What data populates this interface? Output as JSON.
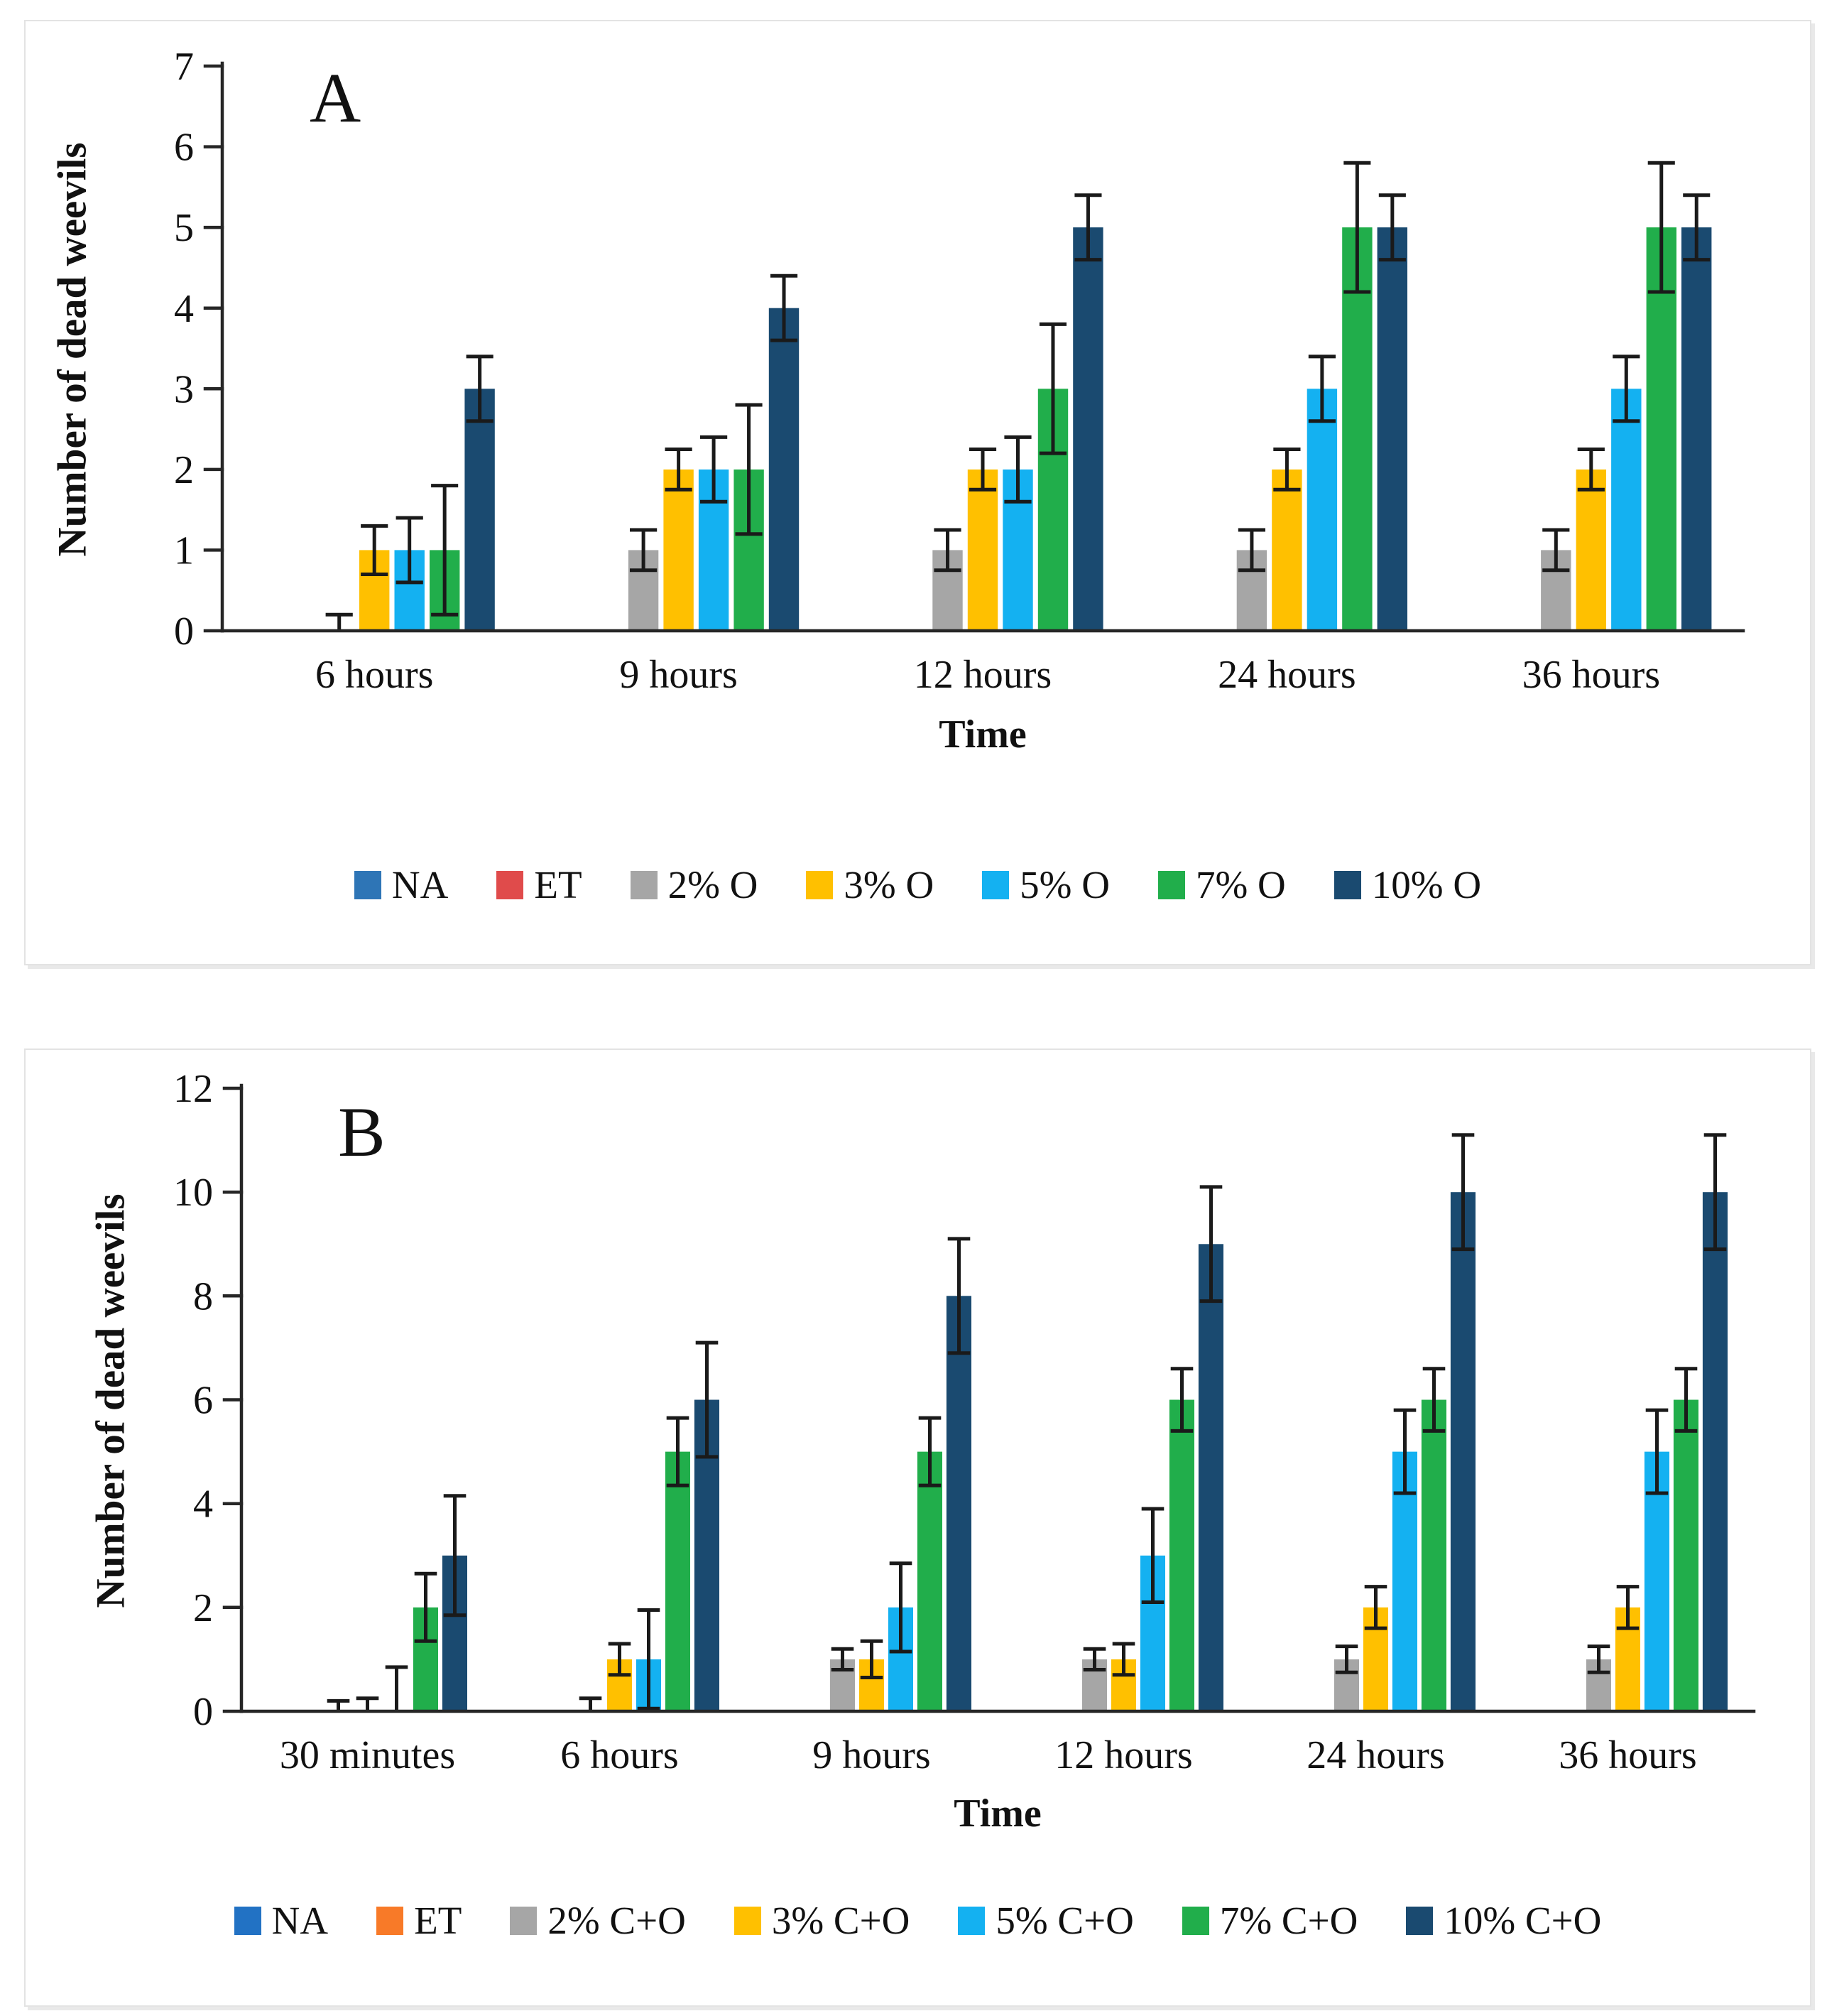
{
  "chart_data": [
    {
      "type": "bar",
      "panel_label": "A",
      "title": "",
      "xlabel": "Time",
      "ylabel": "Number of dead weevils",
      "categories": [
        "6 hours",
        "9 hours",
        "12 hours",
        "24 hours",
        "36 hours"
      ],
      "ylim": [
        0,
        7
      ],
      "yticks": [
        0,
        1,
        2,
        3,
        4,
        5,
        6,
        7
      ],
      "grid": false,
      "legend_position": "bottom",
      "error_bars": true,
      "series": [
        {
          "name": "NA",
          "color": "#2E75B6",
          "values": [
            0,
            0,
            0,
            0,
            0
          ],
          "errors": [
            0,
            0,
            0,
            0,
            0
          ]
        },
        {
          "name": "ET",
          "color": "#E04B4B",
          "values": [
            0,
            0,
            0,
            0,
            0
          ],
          "errors": [
            0,
            0,
            0,
            0,
            0
          ]
        },
        {
          "name": "2% O",
          "color": "#A6A6A6",
          "values": [
            0,
            1,
            1,
            1,
            1
          ],
          "errors": [
            0.2,
            0.25,
            0.25,
            0.25,
            0.25
          ]
        },
        {
          "name": "3% O",
          "color": "#FFC000",
          "values": [
            1,
            2,
            2,
            2,
            2
          ],
          "errors": [
            0.3,
            0.25,
            0.25,
            0.25,
            0.25
          ]
        },
        {
          "name": "5% O",
          "color": "#14B1F1",
          "values": [
            1,
            2,
            2,
            3,
            3
          ],
          "errors": [
            0.4,
            0.4,
            0.4,
            0.4,
            0.4
          ]
        },
        {
          "name": "7% O",
          "color": "#21AE4B",
          "values": [
            1,
            2,
            3,
            5,
            5
          ],
          "errors": [
            0.8,
            0.8,
            0.8,
            0.8,
            0.8
          ]
        },
        {
          "name": "10% O",
          "color": "#1A4A70",
          "values": [
            3,
            4,
            5,
            5,
            5
          ],
          "errors": [
            0.4,
            0.4,
            0.4,
            0.4,
            0.4
          ]
        }
      ]
    },
    {
      "type": "bar",
      "panel_label": "B",
      "title": "",
      "xlabel": "Time",
      "ylabel": "Number of dead weevils",
      "categories": [
        "30 minutes",
        "6 hours",
        "9 hours",
        "12 hours",
        "24 hours",
        "36 hours"
      ],
      "ylim": [
        0,
        12
      ],
      "yticks": [
        0,
        2,
        4,
        6,
        8,
        10,
        12
      ],
      "grid": false,
      "legend_position": "bottom",
      "error_bars": true,
      "series": [
        {
          "name": "NA",
          "color": "#2272C4",
          "values": [
            0,
            0,
            0,
            0,
            0,
            0
          ],
          "errors": [
            0,
            0,
            0,
            0,
            0,
            0
          ]
        },
        {
          "name": "ET",
          "color": "#F87A28",
          "values": [
            0,
            0,
            0,
            0,
            0,
            0
          ],
          "errors": [
            0,
            0,
            0,
            0,
            0,
            0
          ]
        },
        {
          "name": "2% C+O",
          "color": "#A6A6A6",
          "values": [
            0,
            0,
            1,
            1,
            1,
            1
          ],
          "errors": [
            0.2,
            0.25,
            0.2,
            0.2,
            0.25,
            0.25
          ]
        },
        {
          "name": "3% C+O",
          "color": "#FFC000",
          "values": [
            0,
            1,
            1,
            1,
            2,
            2
          ],
          "errors": [
            0.25,
            0.3,
            0.35,
            0.3,
            0.4,
            0.4
          ]
        },
        {
          "name": "5% C+O",
          "color": "#14B1F1",
          "values": [
            0,
            1,
            2,
            3,
            5,
            5
          ],
          "errors": [
            0.85,
            0.95,
            0.85,
            0.9,
            0.8,
            0.8
          ]
        },
        {
          "name": "7% C+O",
          "color": "#21AE4B",
          "values": [
            2,
            5,
            5,
            6,
            6,
            6
          ],
          "errors": [
            0.65,
            0.65,
            0.65,
            0.6,
            0.6,
            0.6
          ]
        },
        {
          "name": "10% C+O",
          "color": "#1A4A70",
          "values": [
            3,
            6,
            8,
            9,
            10,
            10
          ],
          "errors": [
            1.15,
            1.1,
            1.1,
            1.1,
            1.1,
            1.1
          ]
        }
      ]
    }
  ]
}
